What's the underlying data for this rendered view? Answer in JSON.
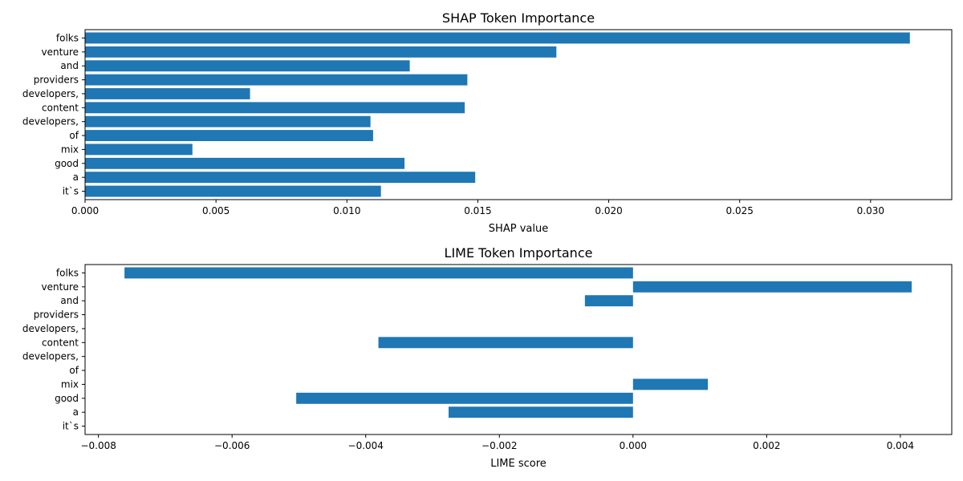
{
  "chart_data": [
    {
      "type": "bar",
      "orientation": "horizontal",
      "title": "SHAP Token Importance",
      "xlabel": "SHAP value",
      "ylabel": "",
      "categories": [
        "folks",
        "venture",
        "and",
        "providers",
        "developers,",
        "content",
        "developers,",
        "of",
        "mix",
        "good",
        "a",
        "it`s"
      ],
      "values": [
        0.0315,
        0.018,
        0.0124,
        0.0146,
        0.0063,
        0.0145,
        0.0109,
        0.011,
        0.0041,
        0.0122,
        0.0149,
        0.0113
      ],
      "xlim": [
        0,
        0.0331
      ],
      "xticks": [
        0,
        0.005,
        0.01,
        0.015,
        0.02,
        0.025,
        0.03
      ],
      "xtick_labels": [
        "0.000",
        "0.005",
        "0.010",
        "0.015",
        "0.020",
        "0.025",
        "0.030"
      ],
      "grid": false,
      "color": "#1f77b4"
    },
    {
      "type": "bar",
      "orientation": "horizontal",
      "title": "LIME Token Importance",
      "xlabel": "LIME score",
      "ylabel": "",
      "categories": [
        "folks",
        "venture",
        "and",
        "providers",
        "developers,",
        "content",
        "developers,",
        "of",
        "mix",
        "good",
        "a",
        "it`s"
      ],
      "values": [
        -0.00761,
        0.00417,
        -0.00072,
        0,
        0,
        -0.00381,
        0,
        0,
        0.00112,
        -0.00504,
        -0.00276,
        0
      ],
      "xlim": [
        -0.0082,
        0.00477
      ],
      "xticks": [
        -0.008,
        -0.006,
        -0.004,
        -0.002,
        0,
        0.002,
        0.004
      ],
      "xtick_labels": [
        "−0.008",
        "−0.006",
        "−0.004",
        "−0.002",
        "0.000",
        "0.002",
        "0.004"
      ],
      "grid": false,
      "color": "#1f77b4"
    }
  ]
}
